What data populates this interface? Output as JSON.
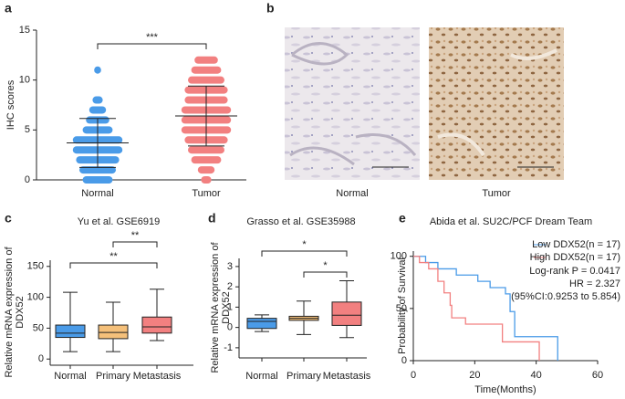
{
  "chart_data": [
    {
      "type": "swarm",
      "panel_label": "a",
      "y_label": "IHC scores",
      "categories": [
        "Normal",
        "Tumor"
      ],
      "groups": [
        {
          "color": "#4a9be8",
          "scores": [
            0,
            1,
            2,
            3,
            4,
            5,
            6,
            7,
            8,
            11
          ],
          "counts": [
            8,
            10,
            12,
            14,
            14,
            8,
            6,
            4,
            2,
            1
          ],
          "mean": 3.7,
          "sd": 2.45
        },
        {
          "color": "#f28080",
          "scores": [
            0,
            1,
            2,
            3,
            4,
            5,
            6,
            7,
            8,
            9,
            10,
            11,
            12
          ],
          "counts": [
            2,
            4,
            8,
            10,
            12,
            14,
            14,
            14,
            12,
            12,
            10,
            8,
            6
          ],
          "mean": 6.4,
          "sd": 3.0
        }
      ],
      "significance": [
        {
          "groups": [
            "Normal",
            "Tumor"
          ],
          "label": "***"
        }
      ],
      "ylim": [
        0,
        15
      ],
      "yticks": [
        0,
        5,
        10,
        15
      ]
    },
    {
      "type": "image",
      "panel_label": "b",
      "categories": [
        "Normal",
        "Tumor"
      ]
    },
    {
      "type": "box",
      "panel_label": "c",
      "title": "Yu et al. GSE6919",
      "y_label": [
        "Relative mRNA expression of",
        "DDX52"
      ],
      "categories": [
        "Normal",
        "Primary",
        "Metastasis"
      ],
      "colors": [
        "#4a9be8",
        "#f5c07a",
        "#f28080"
      ],
      "boxes": [
        {
          "min": 12,
          "q1": 35,
          "median": 42,
          "q3": 55,
          "max": 108
        },
        {
          "min": 12,
          "q1": 33,
          "median": 43,
          "q3": 55,
          "max": 92
        },
        {
          "min": 30,
          "q1": 42,
          "median": 52,
          "q3": 68,
          "max": 113
        }
      ],
      "significance": [
        {
          "groups": [
            "Primary",
            "Metastasis"
          ],
          "label": "**"
        },
        {
          "groups": [
            "Normal",
            "Metastasis"
          ],
          "label": "**"
        }
      ],
      "ylim": [
        -10,
        160
      ],
      "yticks": [
        0,
        50,
        100,
        150
      ]
    },
    {
      "type": "box",
      "panel_label": "d",
      "title": "Grasso et al. GSE35988",
      "y_label": [
        "Relative mRNA expression of",
        "DDX52"
      ],
      "categories": [
        "Normal",
        "Primary",
        "Metastasis"
      ],
      "colors": [
        "#4a9be8",
        "#f5c07a",
        "#f28080"
      ],
      "boxes": [
        {
          "min": -0.2,
          "q1": -0.05,
          "median": 0.3,
          "q3": 0.45,
          "max": 0.62
        },
        {
          "min": -0.35,
          "q1": 0.35,
          "median": 0.45,
          "q3": 0.55,
          "max": 1.3
        },
        {
          "min": -0.5,
          "q1": 0.1,
          "median": 0.6,
          "q3": 1.25,
          "max": 2.3
        }
      ],
      "significance": [
        {
          "groups": [
            "Normal",
            "Metastasis"
          ],
          "label": "*"
        },
        {
          "groups": [
            "Primary",
            "Metastasis"
          ],
          "label": "*"
        }
      ],
      "ylim": [
        -1.5,
        3.4
      ],
      "yticks": [
        -1,
        0,
        1,
        2,
        3
      ]
    },
    {
      "type": "line",
      "panel_label": "e",
      "title": "Abida et al. SU2C/PCF Dream Team",
      "x_label": "Time(Months)",
      "y_label": "Probability of Survival",
      "series": [
        {
          "name": "Low DDX52(n = 17)",
          "color": "#4a9be8",
          "x": [
            0,
            4,
            8,
            14,
            21,
            25,
            30,
            31.5,
            33,
            47
          ],
          "values": [
            100,
            94,
            88,
            82,
            76,
            70,
            64,
            47,
            23,
            0
          ]
        },
        {
          "name": "High DDX52(n = 17)",
          "color": "#f28080",
          "x": [
            0,
            2,
            5,
            8,
            10,
            12,
            12.5,
            17,
            29,
            41
          ],
          "values": [
            100,
            94,
            88,
            76,
            65,
            53,
            41,
            35,
            18,
            0
          ]
        }
      ],
      "annotations": [
        "Log-rank P = 0.0417",
        "HR = 2.327",
        "(95%CI:0.9253 to 5.854)"
      ],
      "xlim": [
        0,
        60
      ],
      "xticks": [
        0,
        20,
        40,
        60
      ],
      "ylim": [
        0,
        105
      ],
      "yticks": [
        0,
        50,
        100
      ]
    }
  ]
}
